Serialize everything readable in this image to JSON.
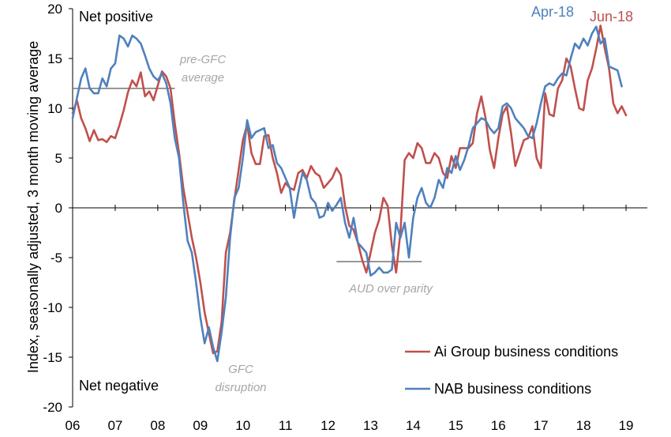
{
  "chart_data": {
    "type": "line",
    "ylabel": "Index, seasonally adjusted, 3 month moving average",
    "xlabel": "",
    "ylim": [
      -20,
      20
    ],
    "yticks": [
      20,
      15,
      10,
      5,
      0,
      -5,
      -10,
      -15,
      -20
    ],
    "xlim": [
      2006,
      2019.5
    ],
    "xtick_labels": [
      "06",
      "07",
      "08",
      "09",
      "10",
      "11",
      "12",
      "13",
      "14",
      "15",
      "16",
      "17",
      "18",
      "19"
    ],
    "xtick_values": [
      2006,
      2007,
      2008,
      2009,
      2010,
      2011,
      2012,
      2013,
      2014,
      2015,
      2016,
      2017,
      2018,
      2019
    ],
    "legend": "bottom-right",
    "corner_labels": {
      "top": "Net positive",
      "bottom": "Net negative"
    },
    "series": [
      {
        "name": "Ai Group business conditions",
        "color": "#c0504d",
        "end_label": "Jun-18",
        "points": [
          [
            2006.0,
            9.5
          ],
          [
            2006.1,
            10.8
          ],
          [
            2006.2,
            9.0
          ],
          [
            2006.3,
            8.0
          ],
          [
            2006.4,
            6.7
          ],
          [
            2006.5,
            7.8
          ],
          [
            2006.6,
            6.8
          ],
          [
            2006.7,
            6.9
          ],
          [
            2006.8,
            6.6
          ],
          [
            2006.9,
            7.2
          ],
          [
            2007.0,
            7.0
          ],
          [
            2007.1,
            8.3
          ],
          [
            2007.2,
            9.8
          ],
          [
            2007.3,
            11.6
          ],
          [
            2007.4,
            12.8
          ],
          [
            2007.5,
            12.2
          ],
          [
            2007.6,
            13.6
          ],
          [
            2007.7,
            11.2
          ],
          [
            2007.8,
            11.7
          ],
          [
            2007.9,
            10.8
          ],
          [
            2008.0,
            12.3
          ],
          [
            2008.1,
            13.7
          ],
          [
            2008.2,
            13.2
          ],
          [
            2008.3,
            12.0
          ],
          [
            2008.4,
            8.5
          ],
          [
            2008.5,
            5.5
          ],
          [
            2008.6,
            2.0
          ],
          [
            2008.7,
            -0.5
          ],
          [
            2008.8,
            -3.0
          ],
          [
            2008.9,
            -5.0
          ],
          [
            2009.0,
            -7.5
          ],
          [
            2009.1,
            -10.5
          ],
          [
            2009.2,
            -12.6
          ],
          [
            2009.3,
            -14.6
          ],
          [
            2009.4,
            -14.4
          ],
          [
            2009.5,
            -11.5
          ],
          [
            2009.6,
            -4.5
          ],
          [
            2009.7,
            -2.5
          ],
          [
            2009.8,
            0.8
          ],
          [
            2009.9,
            3.8
          ],
          [
            2010.0,
            6.8
          ],
          [
            2010.1,
            8.4
          ],
          [
            2010.2,
            5.5
          ],
          [
            2010.3,
            4.4
          ],
          [
            2010.4,
            4.4
          ],
          [
            2010.5,
            7.2
          ],
          [
            2010.6,
            7.3
          ],
          [
            2010.7,
            5.0
          ],
          [
            2010.8,
            3.5
          ],
          [
            2010.9,
            1.5
          ],
          [
            2011.0,
            2.5
          ],
          [
            2011.1,
            2.0
          ],
          [
            2011.2,
            1.8
          ],
          [
            2011.3,
            3.5
          ],
          [
            2011.4,
            3.8
          ],
          [
            2011.5,
            3.0
          ],
          [
            2011.6,
            4.2
          ],
          [
            2011.7,
            3.5
          ],
          [
            2011.8,
            3.2
          ],
          [
            2011.9,
            2.0
          ],
          [
            2012.0,
            2.5
          ],
          [
            2012.1,
            3.0
          ],
          [
            2012.2,
            4.0
          ],
          [
            2012.3,
            3.3
          ],
          [
            2012.4,
            0.2
          ],
          [
            2012.5,
            -1.8
          ],
          [
            2012.6,
            -2.2
          ],
          [
            2012.7,
            -3.5
          ],
          [
            2012.8,
            -5.2
          ],
          [
            2012.9,
            -6.5
          ],
          [
            2013.0,
            -4.5
          ],
          [
            2013.1,
            -2.5
          ],
          [
            2013.2,
            -1.2
          ],
          [
            2013.3,
            1.0
          ],
          [
            2013.4,
            0.2
          ],
          [
            2013.5,
            -3.8
          ],
          [
            2013.6,
            -6.5
          ],
          [
            2013.7,
            -2.5
          ],
          [
            2013.8,
            4.8
          ],
          [
            2013.9,
            5.5
          ],
          [
            2014.0,
            5.0
          ],
          [
            2014.1,
            6.5
          ],
          [
            2014.2,
            6.0
          ],
          [
            2014.3,
            4.5
          ],
          [
            2014.4,
            4.5
          ],
          [
            2014.5,
            5.5
          ],
          [
            2014.6,
            5.0
          ],
          [
            2014.7,
            3.5
          ],
          [
            2014.8,
            3.0
          ],
          [
            2014.9,
            5.2
          ],
          [
            2015.0,
            4.0
          ],
          [
            2015.1,
            6.0
          ],
          [
            2015.2,
            6.0
          ],
          [
            2015.3,
            6.0
          ],
          [
            2015.4,
            6.5
          ],
          [
            2015.5,
            9.5
          ],
          [
            2015.6,
            11.2
          ],
          [
            2015.7,
            9.0
          ],
          [
            2015.8,
            5.8
          ],
          [
            2015.9,
            4.0
          ],
          [
            2016.0,
            7.0
          ],
          [
            2016.1,
            9.4
          ],
          [
            2016.2,
            10.2
          ],
          [
            2016.3,
            7.5
          ],
          [
            2016.4,
            4.2
          ],
          [
            2016.5,
            5.5
          ],
          [
            2016.6,
            6.8
          ],
          [
            2016.7,
            7.0
          ],
          [
            2016.8,
            8.2
          ],
          [
            2016.9,
            5.0
          ],
          [
            2017.0,
            4.0
          ],
          [
            2017.1,
            11.5
          ],
          [
            2017.2,
            9.4
          ],
          [
            2017.3,
            9.2
          ],
          [
            2017.4,
            12.0
          ],
          [
            2017.5,
            12.8
          ],
          [
            2017.6,
            15.0
          ],
          [
            2017.7,
            14.2
          ],
          [
            2017.8,
            12.0
          ],
          [
            2017.9,
            10.0
          ],
          [
            2018.0,
            9.8
          ],
          [
            2018.1,
            12.8
          ],
          [
            2018.2,
            14.0
          ],
          [
            2018.3,
            16.0
          ],
          [
            2018.4,
            18.3
          ],
          [
            2018.5,
            16.0
          ],
          [
            2018.6,
            14.0
          ],
          [
            2018.7,
            10.5
          ],
          [
            2018.8,
            9.5
          ],
          [
            2018.9,
            10.2
          ],
          [
            2019.0,
            9.3
          ]
        ]
      },
      {
        "name": "NAB business conditions",
        "color": "#4f81bd",
        "end_label": "Apr-18",
        "points": [
          [
            2006.0,
            9.0
          ],
          [
            2006.1,
            11.0
          ],
          [
            2006.2,
            13.0
          ],
          [
            2006.3,
            14.0
          ],
          [
            2006.4,
            12.0
          ],
          [
            2006.5,
            11.5
          ],
          [
            2006.6,
            11.5
          ],
          [
            2006.7,
            13.0
          ],
          [
            2006.8,
            12.2
          ],
          [
            2006.9,
            14.0
          ],
          [
            2007.0,
            14.5
          ],
          [
            2007.1,
            17.3
          ],
          [
            2007.2,
            17.0
          ],
          [
            2007.3,
            16.2
          ],
          [
            2007.4,
            17.3
          ],
          [
            2007.5,
            17.0
          ],
          [
            2007.6,
            16.5
          ],
          [
            2007.7,
            15.3
          ],
          [
            2007.8,
            14.0
          ],
          [
            2007.9,
            13.2
          ],
          [
            2008.0,
            12.8
          ],
          [
            2008.1,
            13.5
          ],
          [
            2008.2,
            12.5
          ],
          [
            2008.3,
            10.5
          ],
          [
            2008.4,
            7.0
          ],
          [
            2008.5,
            5.0
          ],
          [
            2008.6,
            0.5
          ],
          [
            2008.7,
            -3.3
          ],
          [
            2008.8,
            -4.5
          ],
          [
            2008.9,
            -7.5
          ],
          [
            2009.0,
            -11.0
          ],
          [
            2009.1,
            -13.6
          ],
          [
            2009.2,
            -12.0
          ],
          [
            2009.3,
            -14.0
          ],
          [
            2009.4,
            -15.4
          ],
          [
            2009.5,
            -12.5
          ],
          [
            2009.6,
            -9.0
          ],
          [
            2009.7,
            -3.0
          ],
          [
            2009.8,
            1.0
          ],
          [
            2009.9,
            2.0
          ],
          [
            2010.0,
            5.0
          ],
          [
            2010.1,
            8.8
          ],
          [
            2010.2,
            7.0
          ],
          [
            2010.3,
            7.6
          ],
          [
            2010.4,
            7.8
          ],
          [
            2010.5,
            8.0
          ],
          [
            2010.6,
            6.0
          ],
          [
            2010.7,
            6.3
          ],
          [
            2010.8,
            4.5
          ],
          [
            2010.9,
            4.0
          ],
          [
            2011.0,
            3.0
          ],
          [
            2011.1,
            2.0
          ],
          [
            2011.2,
            -1.0
          ],
          [
            2011.3,
            1.5
          ],
          [
            2011.4,
            3.5
          ],
          [
            2011.5,
            2.8
          ],
          [
            2011.6,
            1.0
          ],
          [
            2011.7,
            0.5
          ],
          [
            2011.8,
            -1.0
          ],
          [
            2011.9,
            -0.8
          ],
          [
            2012.0,
            0.5
          ],
          [
            2012.1,
            -0.3
          ],
          [
            2012.2,
            0.3
          ],
          [
            2012.3,
            1.0
          ],
          [
            2012.4,
            -1.5
          ],
          [
            2012.5,
            -3.0
          ],
          [
            2012.6,
            -1.0
          ],
          [
            2012.7,
            -3.5
          ],
          [
            2012.8,
            -4.0
          ],
          [
            2012.9,
            -4.5
          ],
          [
            2013.0,
            -6.8
          ],
          [
            2013.1,
            -6.5
          ],
          [
            2013.2,
            -6.0
          ],
          [
            2013.3,
            -6.5
          ],
          [
            2013.4,
            -6.5
          ],
          [
            2013.5,
            -6.2
          ],
          [
            2013.6,
            -1.5
          ],
          [
            2013.7,
            -3.0
          ],
          [
            2013.8,
            -1.5
          ],
          [
            2013.9,
            -5.0
          ],
          [
            2014.0,
            -1.0
          ],
          [
            2014.1,
            1.0
          ],
          [
            2014.2,
            2.0
          ],
          [
            2014.3,
            0.5
          ],
          [
            2014.4,
            0.0
          ],
          [
            2014.5,
            1.0
          ],
          [
            2014.6,
            2.8
          ],
          [
            2014.7,
            2.0
          ],
          [
            2014.8,
            4.0
          ],
          [
            2014.9,
            3.5
          ],
          [
            2015.0,
            5.2
          ],
          [
            2015.1,
            3.8
          ],
          [
            2015.2,
            4.8
          ],
          [
            2015.3,
            6.2
          ],
          [
            2015.4,
            8.0
          ],
          [
            2015.5,
            8.5
          ],
          [
            2015.6,
            9.0
          ],
          [
            2015.7,
            8.8
          ],
          [
            2015.8,
            8.0
          ],
          [
            2015.9,
            7.5
          ],
          [
            2016.0,
            8.0
          ],
          [
            2016.1,
            10.2
          ],
          [
            2016.2,
            10.5
          ],
          [
            2016.3,
            10.0
          ],
          [
            2016.4,
            9.0
          ],
          [
            2016.5,
            8.5
          ],
          [
            2016.6,
            8.0
          ],
          [
            2016.7,
            7.2
          ],
          [
            2016.8,
            7.0
          ],
          [
            2016.9,
            8.5
          ],
          [
            2017.0,
            10.5
          ],
          [
            2017.1,
            12.2
          ],
          [
            2017.2,
            12.5
          ],
          [
            2017.3,
            12.3
          ],
          [
            2017.4,
            13.0
          ],
          [
            2017.5,
            13.5
          ],
          [
            2017.6,
            13.3
          ],
          [
            2017.7,
            15.0
          ],
          [
            2017.8,
            16.5
          ],
          [
            2017.9,
            16.0
          ],
          [
            2018.0,
            17.0
          ],
          [
            2018.1,
            16.3
          ],
          [
            2018.2,
            17.5
          ],
          [
            2018.3,
            18.2
          ],
          [
            2018.4,
            16.5
          ],
          [
            2018.5,
            17.0
          ],
          [
            2018.6,
            14.2
          ],
          [
            2018.7,
            14.0
          ],
          [
            2018.8,
            13.8
          ],
          [
            2018.9,
            12.2
          ]
        ]
      }
    ],
    "annotations": [
      {
        "text": "pre-GFC average",
        "lines": [
          "pre-GFC",
          "average"
        ],
        "x": 2007.1,
        "y": 12.0,
        "hline": [
          2006.0,
          2008.4
        ]
      },
      {
        "text": "AUD over parity",
        "lines": [
          "AUD over parity"
        ],
        "x": 2013.3,
        "y": -5.4,
        "hline": [
          2012.2,
          2014.2
        ]
      },
      {
        "text": "GFC disruption",
        "lines": [
          "GFC",
          "disruption"
        ],
        "x": 2009.7,
        "y": -16.5
      }
    ]
  }
}
